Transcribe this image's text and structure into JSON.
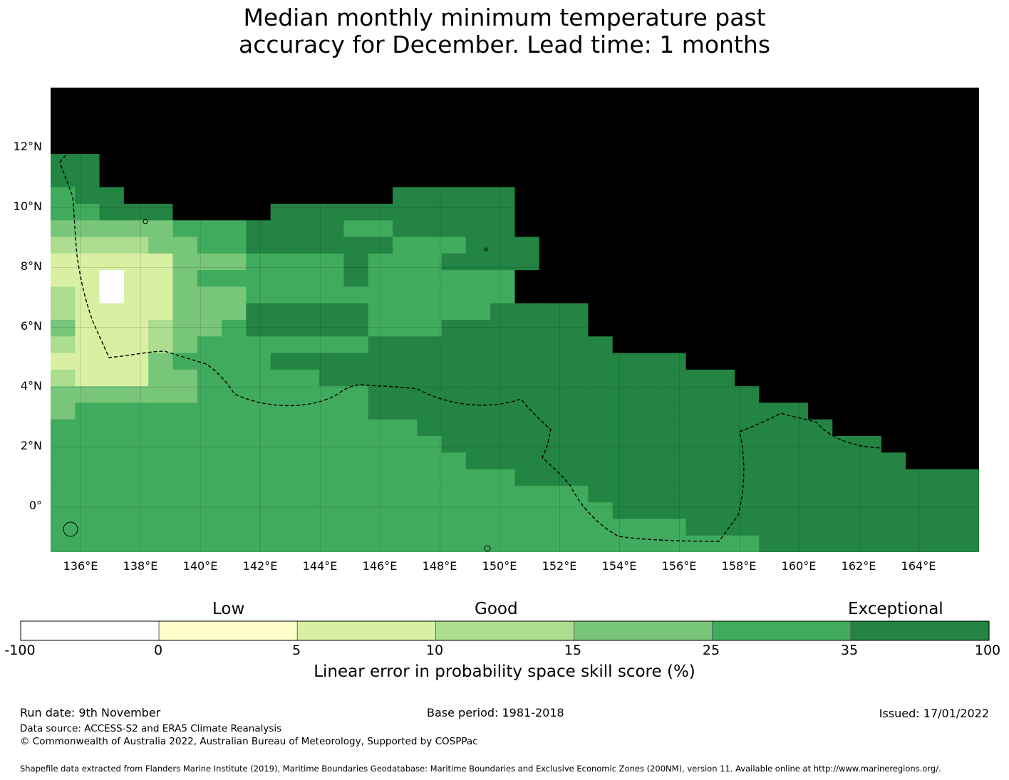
{
  "title": {
    "line1": "Median monthly minimum temperature past",
    "line2": "accuracy for December. Lead time: 1 months"
  },
  "map": {
    "lat_labels": [
      "12°N",
      "10°N",
      "8°N",
      "6°N",
      "4°N",
      "2°N",
      "0°"
    ],
    "lon_labels": [
      "136°E",
      "138°E",
      "140°E",
      "142°E",
      "144°E",
      "146°E",
      "148°E",
      "150°E",
      "152°E",
      "154°E",
      "156°E",
      "158°E",
      "160°E",
      "162°E",
      "164°E"
    ],
    "lon_range": [
      135,
      166
    ],
    "lat_range": [
      -1.5,
      14
    ],
    "grid_step_deg": 0.833,
    "grid": [
      "77777777777777777777777777777777777777",
      "77777777777777777777777777777777777777",
      "77777777777777777777777777777777777777",
      "77777777777777777777777777777777777777",
      "66777777777777777777777777777777777777",
      "66777777777777777777777777777777777777",
      "56677777777777666667777777777777777777",
      "55666777766666666667777777777777777777",
      "44444555666655666667777777777777777777",
      "33334455666666555666777777777777777777",
      "22222444555565556666777777777777777777",
      "22022455555565555557777777777777777777",
      "32022444555555555557777777777777777777",
      "32222444666665555566667777777777777777",
      "42223445666665556666667777777777777777",
      "32223455555556666666666777777777777777",
      "22224555566666666666666666777777777777",
      "32224455555666666666666666667777777777",
      "44444455555556666666666666666777777777",
      "45555555555556666666666666666667777777",
      "55555555555555566666666666666666777777",
      "55555555555555556666666666666666667777",
      "55555555555555555666666666666666666777",
      "55555555555555555556666666666666666666",
      "55555555555555555555556666666666666666",
      "55555555555555555555555666666666666666",
      "55555555555555555555555555666666666666",
      "55555555555555555555555555555666666666"
    ],
    "outline_label": "EEZ boundary"
  },
  "colorbar": {
    "categories": [
      {
        "label": "Low",
        "position": 0.21
      },
      {
        "label": "Good",
        "position": 0.5
      },
      {
        "label": "Exceptional",
        "position": 0.88
      }
    ],
    "colors": [
      "#ffffff",
      "#ffffcc",
      "#d9f0a3",
      "#addd8e",
      "#78c679",
      "#41ab5d",
      "#238443"
    ],
    "ticks": [
      "-100",
      "0",
      "5",
      "10",
      "15",
      "25",
      "35",
      "100"
    ],
    "title": "Linear error in probability space skill score (%)"
  },
  "footer": {
    "run_date": "Run date: 9th November",
    "base_period": "Base period: 1981-2018",
    "issued": "Issued: 17/01/2022",
    "data_source": "Data source: ACCESS-S2 and ERA5 Climate Reanalysis",
    "copyright": "© Commonwealth of Australia 2022, Australian Bureau of Meteorology, Supported by COSPPac",
    "shapefile": "Shapefile data extracted from Flanders Marine Institute (2019), Maritime Boundaries Geodatabase: Maritime Boundaries and Exclusive Economic Zones (200NM), version 11. Available online at http://www.marineregions.org/."
  }
}
